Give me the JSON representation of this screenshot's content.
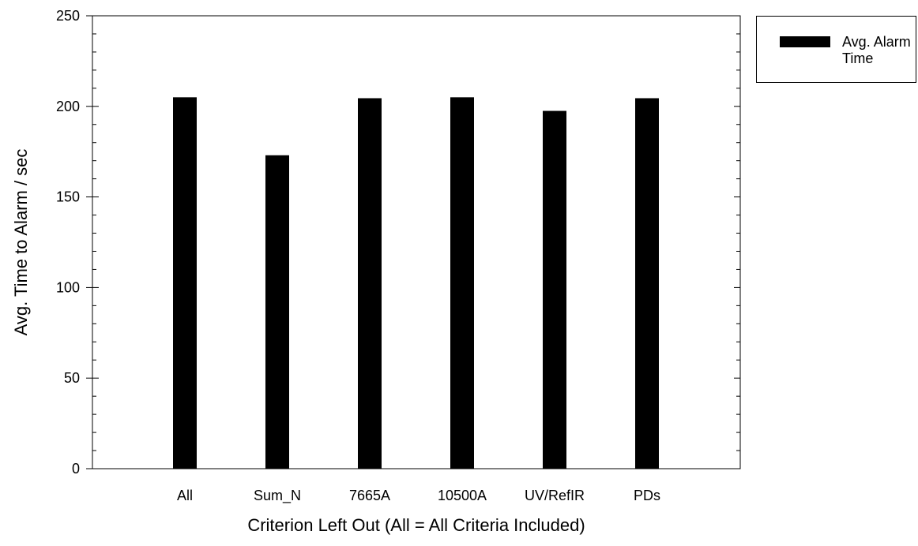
{
  "chart_data": {
    "type": "bar",
    "categories": [
      "All",
      "Sum_N",
      "7665A",
      "10500A",
      "UV/RefIR",
      "PDs"
    ],
    "series": [
      {
        "name": "Avg. Alarm Time",
        "values": [
          205,
          173,
          204.5,
          205,
          197.5,
          204.5
        ],
        "color": "#000000"
      }
    ],
    "xlabel": "Criterion Left Out (All = All Criteria Included)",
    "ylabel": "Avg. Time to Alarm / sec",
    "ylim": [
      0,
      250
    ],
    "yticks": [
      "0",
      "50",
      "100",
      "150",
      "200",
      "250"
    ],
    "grid": false,
    "legend_position": "top-right, outside plot"
  }
}
